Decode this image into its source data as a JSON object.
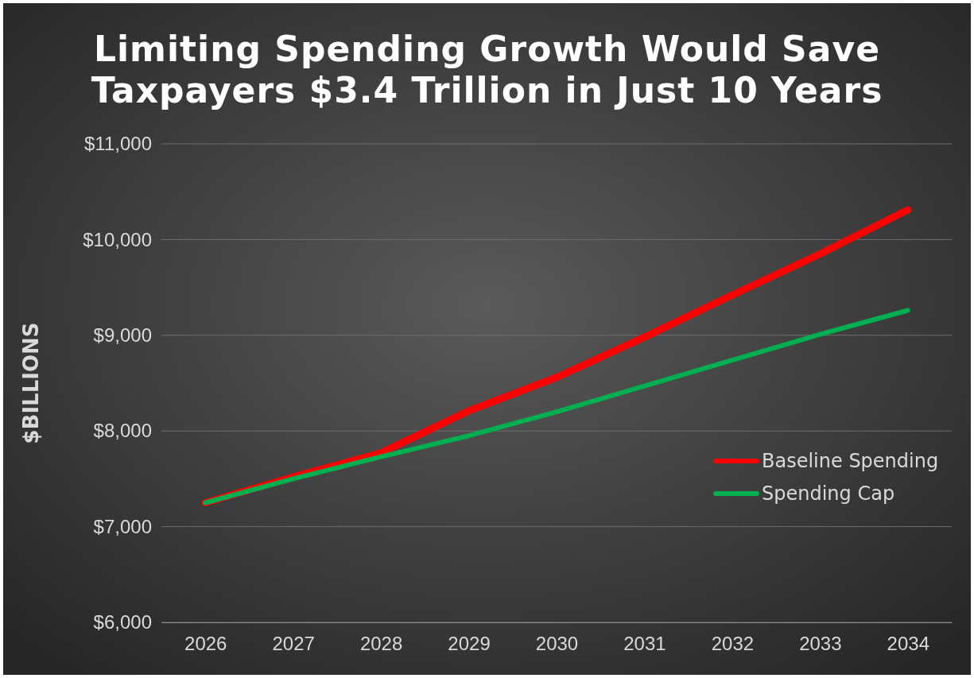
{
  "chart_data": {
    "type": "line",
    "title": "Limiting Spending Growth Would Save Taxpayers $3.4 Trillion in Just 10 Years",
    "ylabel": "$BILLIONS",
    "categories": [
      "2026",
      "2027",
      "2028",
      "2029",
      "2030",
      "2031",
      "2032",
      "2033",
      "2034"
    ],
    "series": [
      {
        "name": "Baseline Spending",
        "color": "#ff0000",
        "values": [
          7250,
          7520,
          7770,
          8210,
          8560,
          8980,
          9420,
          9850,
          10310
        ]
      },
      {
        "name": "Spending Cap",
        "color": "#00b050",
        "values": [
          7250,
          7500,
          7730,
          7950,
          8200,
          8470,
          8740,
          9010,
          9260
        ]
      }
    ],
    "ylim": [
      6000,
      11000
    ],
    "yticks": [
      {
        "value": 6000,
        "label": "$6,000"
      },
      {
        "value": 7000,
        "label": "$7,000"
      },
      {
        "value": 8000,
        "label": "$8,000"
      },
      {
        "value": 9000,
        "label": "$9,000"
      },
      {
        "value": 10000,
        "label": "$10,000"
      },
      {
        "value": 11000,
        "label": "$11,000"
      }
    ],
    "grid": "y",
    "legend": "right",
    "marker": "none",
    "line_style": "solid"
  }
}
